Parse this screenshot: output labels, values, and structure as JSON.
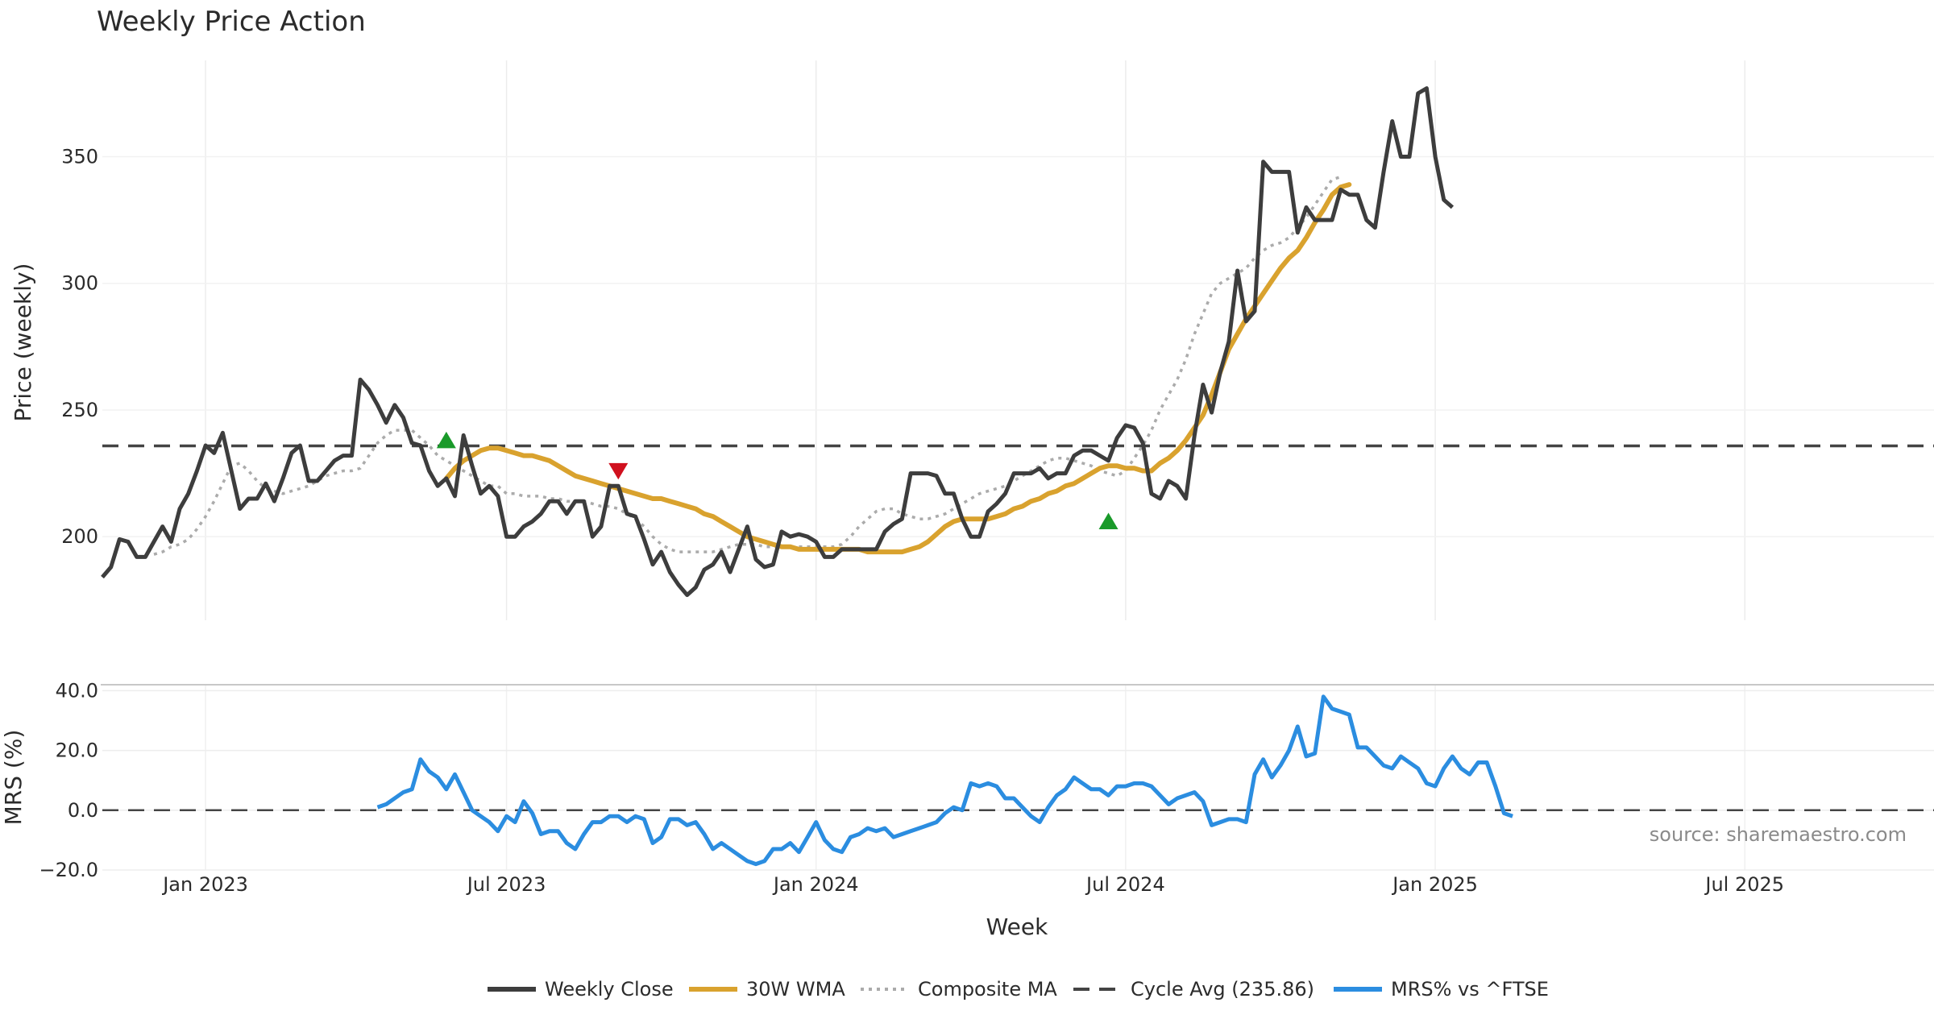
{
  "chart_data": {
    "type": "line",
    "title": "Weekly Price Action",
    "source": "source: sharemaestro.com",
    "xlabel": "Week",
    "x_ticks": [
      "Jan 2023",
      "Jul 2023",
      "Jan 2024",
      "Jul 2024",
      "Jan 2025",
      "Jul 2025"
    ],
    "x_tick_weeks": [
      12,
      47,
      83,
      119,
      155,
      191
    ],
    "n_weeks": 214,
    "price_panel": {
      "ylabel": "Price (weekly)",
      "ylim": [
        167,
        388
      ],
      "y_ticks": [
        "200",
        "250",
        "300",
        "350"
      ],
      "y_tick_values": [
        200,
        250,
        300,
        350
      ],
      "series": [
        {
          "name": "Weekly Close",
          "color": "#3d3d3d",
          "start": 0,
          "values": [
            184,
            188,
            199,
            198,
            192,
            192,
            198,
            204,
            198,
            211,
            217,
            226,
            236,
            233,
            241,
            226,
            211,
            215,
            215,
            221,
            214,
            223,
            233,
            236,
            222,
            222,
            226,
            230,
            232,
            232,
            262,
            258,
            252,
            245,
            252,
            247,
            237,
            236,
            226,
            220,
            223,
            216,
            240,
            228,
            217,
            220,
            216,
            200,
            200,
            204,
            206,
            209,
            214,
            214,
            209,
            214,
            214,
            200,
            204,
            220,
            220,
            209,
            208,
            199,
            189,
            194,
            186,
            181,
            177,
            180,
            187,
            189,
            194,
            186,
            195,
            204,
            191,
            188,
            189,
            202,
            200,
            201,
            200,
            198,
            192,
            192,
            195,
            195,
            195,
            195,
            195,
            202,
            205,
            207,
            225,
            225,
            225,
            224,
            217,
            217,
            207,
            200,
            200,
            210,
            213,
            217,
            225,
            225,
            225,
            227,
            223,
            225,
            225,
            232,
            234,
            234,
            232,
            230,
            239,
            244,
            243,
            237,
            217,
            215,
            222,
            220,
            215,
            240,
            260,
            249,
            265,
            277,
            305,
            285,
            289,
            348,
            344,
            344,
            344,
            320,
            330,
            325,
            325,
            325,
            337,
            335,
            335,
            325,
            322,
            344,
            364,
            350,
            350,
            375,
            377,
            350,
            333,
            330
          ]
        },
        {
          "name": "30W WMA",
          "color": "#d9a22e",
          "start": 40,
          "values": [
            223,
            227,
            230,
            232,
            234,
            235,
            235,
            234,
            233,
            232,
            232,
            231,
            230,
            228,
            226,
            224,
            223,
            222,
            221,
            220,
            219,
            218,
            217,
            216,
            215,
            215,
            214,
            213,
            212,
            211,
            209,
            208,
            206,
            204,
            202,
            200,
            199,
            198,
            197,
            196,
            196,
            195,
            195,
            195,
            195,
            195,
            195,
            195,
            195,
            194,
            194,
            194,
            194,
            194,
            195,
            196,
            198,
            201,
            204,
            206,
            207,
            207,
            207,
            207,
            208,
            209,
            211,
            212,
            214,
            215,
            217,
            218,
            220,
            221,
            223,
            225,
            227,
            228,
            228,
            227,
            227,
            226,
            226,
            229,
            231,
            234,
            238,
            243,
            248,
            256,
            265,
            274,
            280,
            286,
            291,
            296,
            301,
            306,
            310,
            313,
            318,
            324,
            329,
            335,
            338,
            339
          ]
        },
        {
          "name": "Composite MA",
          "color": "#ababab",
          "dash": "4 6",
          "start": 6,
          "values": [
            193,
            194,
            196,
            197,
            199,
            203,
            208,
            214,
            221,
            228,
            229,
            226,
            222,
            219,
            218,
            217,
            218,
            219,
            220,
            222,
            224,
            225,
            226,
            226,
            227,
            232,
            237,
            240,
            242,
            242,
            242,
            239,
            236,
            232,
            230,
            228,
            226,
            224,
            222,
            220,
            220,
            217,
            217,
            216,
            216,
            216,
            215,
            215,
            214,
            214,
            214,
            213,
            212,
            212,
            211,
            209,
            207,
            204,
            200,
            197,
            195,
            194,
            194,
            194,
            194,
            194,
            195,
            196,
            197,
            197,
            197,
            196,
            196,
            196,
            196,
            196,
            196,
            196,
            196,
            196,
            197,
            200,
            204,
            207,
            210,
            211,
            211,
            209,
            208,
            207,
            207,
            208,
            209,
            211,
            213,
            215,
            217,
            218,
            219,
            220,
            222,
            224,
            226,
            228,
            230,
            231,
            231,
            230,
            229,
            228,
            226,
            225,
            224,
            226,
            231,
            236,
            242,
            250,
            256,
            262,
            270,
            280,
            288,
            296,
            300,
            302,
            304,
            306,
            310,
            313,
            315,
            316,
            318,
            322,
            326,
            331,
            336,
            341,
            342
          ]
        },
        {
          "name": "Cycle Avg (235.86)",
          "color": "#444444",
          "dash": "20 12",
          "value": 235.86
        }
      ],
      "markers": [
        {
          "type": "buy",
          "week": 40,
          "value": 238,
          "color": "#1a9a2a"
        },
        {
          "type": "sell",
          "week": 60,
          "value": 226,
          "color": "#d0101e"
        },
        {
          "type": "buy",
          "week": 117,
          "value": 206,
          "color": "#1a9a2a"
        }
      ]
    },
    "mrs_panel": {
      "ylabel": "MRS (%)",
      "ylim": [
        -20,
        42
      ],
      "y_ticks": [
        "40.0",
        "20.0",
        "0.0",
        "−20.0"
      ],
      "y_tick_values": [
        40,
        20,
        0,
        -20
      ],
      "series": [
        {
          "name": "MRS% vs ^FTSE",
          "color": "#2b8de0",
          "start": 32,
          "values": [
            1,
            2,
            4,
            6,
            7,
            17,
            13,
            11,
            7,
            12,
            6,
            0,
            -2,
            -4,
            -7,
            -2,
            -4,
            3,
            -1,
            -8,
            -7,
            -7,
            -11,
            -13,
            -8,
            -4,
            -4,
            -2,
            -2,
            -4,
            -2,
            -3,
            -11,
            -9,
            -3,
            -3,
            -5,
            -4,
            -8,
            -13,
            -11,
            -13,
            -15,
            -17,
            -18,
            -17,
            -13,
            -13,
            -11,
            -14,
            -9,
            -4,
            -10,
            -13,
            -14,
            -9,
            -8,
            -6,
            -7,
            -6,
            -9,
            -8,
            -7,
            -6,
            -5,
            -4,
            -1,
            1,
            0,
            9,
            8,
            9,
            8,
            4,
            4,
            1,
            -2,
            -4,
            1,
            5,
            7,
            11,
            9,
            7,
            7,
            5,
            8,
            8,
            9,
            9,
            8,
            5,
            2,
            4,
            5,
            6,
            3,
            -5,
            -4,
            -3,
            -3,
            -4,
            12,
            17,
            11,
            15,
            20,
            28,
            18,
            19,
            38,
            34,
            33,
            32,
            21,
            21,
            18,
            15,
            14,
            18,
            16,
            14,
            9,
            8,
            14,
            18,
            14,
            12,
            16,
            16,
            8,
            -1,
            -2
          ]
        }
      ],
      "zero_line": {
        "value": 0,
        "color": "#444444",
        "dash": "20 12"
      }
    },
    "legend": [
      {
        "label": "Weekly Close",
        "color": "#3d3d3d",
        "style": "solid"
      },
      {
        "label": "30W WMA",
        "color": "#d9a22e",
        "style": "solid"
      },
      {
        "label": "Composite MA",
        "color": "#ababab",
        "style": "dotted"
      },
      {
        "label": "Cycle Avg (235.86)",
        "color": "#444444",
        "style": "dashed"
      },
      {
        "label": "MRS% vs ^FTSE",
        "color": "#2b8de0",
        "style": "solid"
      }
    ]
  }
}
